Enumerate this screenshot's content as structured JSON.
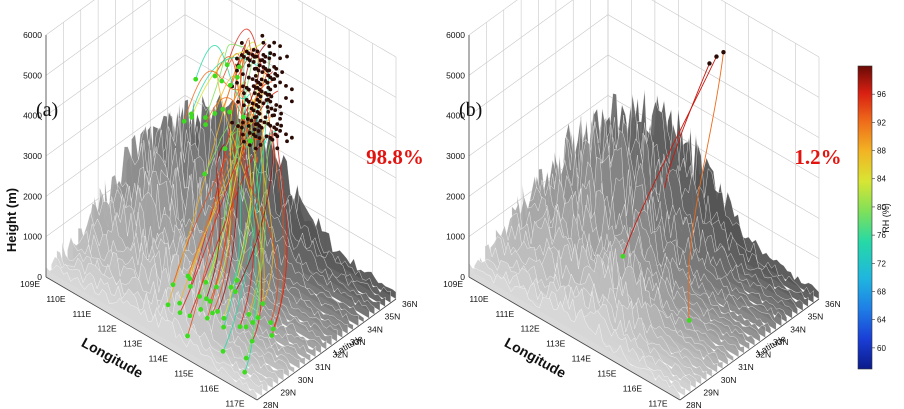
{
  "chart_data": [
    {
      "type": "3d-trajectory",
      "panel_label": "(a)",
      "percentage": "98.8%",
      "zlabel": "Height (m)",
      "xlabel": "Longitude",
      "ylabel": "Latitude",
      "z_ticks": [
        "0",
        "1000",
        "2000",
        "3000",
        "4000",
        "5000",
        "6000"
      ],
      "x_ticks": [
        "109E",
        "110E",
        "111E",
        "112E",
        "113E",
        "114E",
        "115E",
        "116E",
        "117E"
      ],
      "y_ticks": [
        "28N",
        "29N",
        "30N",
        "31N",
        "32N",
        "33N",
        "34N",
        "35N",
        "36N"
      ],
      "zlim": [
        0,
        6000
      ],
      "xlim": [
        109,
        118
      ],
      "ylim": [
        28,
        36
      ],
      "trajectory_count_level": "many",
      "endpoint_color": "#3ddc1f",
      "start_color": "#2a0a05"
    },
    {
      "type": "3d-trajectory",
      "panel_label": "(b)",
      "percentage": "1.2%",
      "zlabel": "",
      "xlabel": "Longitude",
      "ylabel": "Latitude",
      "z_ticks": [
        "0",
        "1000",
        "2000",
        "3000",
        "4000",
        "5000",
        "6000"
      ],
      "x_ticks": [
        "109E",
        "110E",
        "111E",
        "112E",
        "113E",
        "114E",
        "115E",
        "116E",
        "117E"
      ],
      "y_ticks": [
        "28N",
        "29N",
        "30N",
        "31N",
        "32N",
        "33N",
        "34N",
        "35N",
        "36N"
      ],
      "zlim": [
        0,
        6000
      ],
      "xlim": [
        109,
        118
      ],
      "ylim": [
        28,
        36
      ],
      "trajectory_count_level": "few",
      "endpoint_color": "#3ddc1f",
      "start_color": "#2a0a05"
    }
  ],
  "colorbar": {
    "label": "RH (%)",
    "ticks": [
      "60",
      "64",
      "68",
      "72",
      "76",
      "80",
      "84",
      "88",
      "92",
      "96"
    ],
    "range": [
      57,
      100
    ],
    "colors": [
      "#0b1a8a",
      "#1a3fd6",
      "#1f7fe6",
      "#1fb6df",
      "#26d9a6",
      "#7fe05a",
      "#d8e533",
      "#f2b323",
      "#ee6a1a",
      "#d92012",
      "#7a0c08"
    ]
  }
}
